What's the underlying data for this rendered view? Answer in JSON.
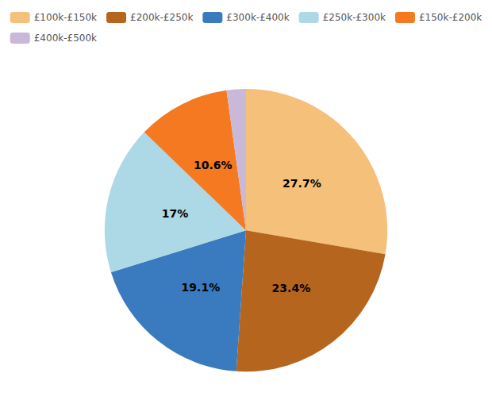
{
  "chart_data": {
    "type": "pie",
    "categories": [
      "£100k-£150k",
      "£200k-£250k",
      "£300k-£400k",
      "£250k-£300k",
      "£150k-£200k",
      "£400k-£500k"
    ],
    "values": [
      27.7,
      23.4,
      19.1,
      17.0,
      10.6,
      2.2
    ],
    "value_labels": [
      "27.7%",
      "23.4%",
      "19.1%",
      "17%",
      "10.6%",
      null
    ],
    "colors": [
      "#f5c07a",
      "#b5651d",
      "#3a7abf",
      "#add8e6",
      "#f47920",
      "#c9b8d8"
    ],
    "data_labels": true,
    "legend": "top"
  }
}
